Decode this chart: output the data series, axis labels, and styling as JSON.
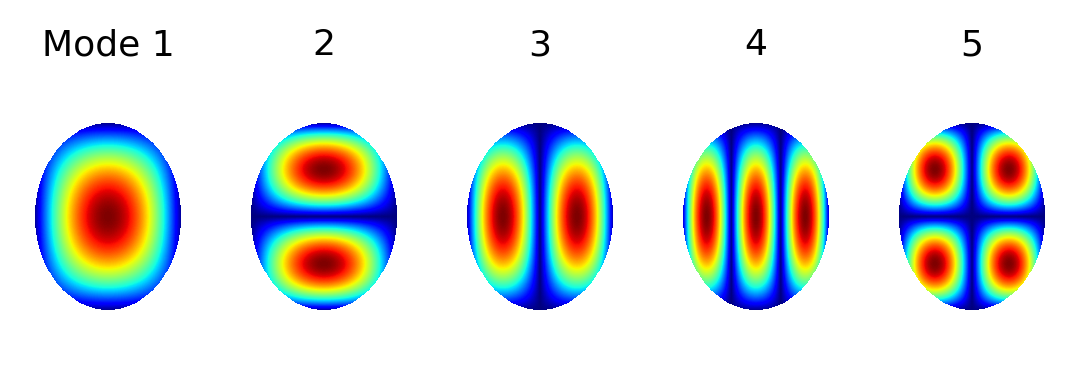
{
  "n_modes": 5,
  "mode_labels": [
    "Mode 1",
    "2",
    "3",
    "4",
    "5"
  ],
  "label_fontsize": 26,
  "background_color": "#ffffff",
  "ellipse_a": 0.72,
  "ellipse_b": 0.92,
  "colormap": "jet",
  "figsize": [
    10.8,
    3.67
  ],
  "dpi": 100,
  "modes": [
    {
      "mx": 1,
      "my": 1
    },
    {
      "mx": 1,
      "my": 2
    },
    {
      "mx": 2,
      "my": 1
    },
    {
      "mx": 3,
      "my": 1
    },
    {
      "mx": 2,
      "my": 2
    }
  ]
}
